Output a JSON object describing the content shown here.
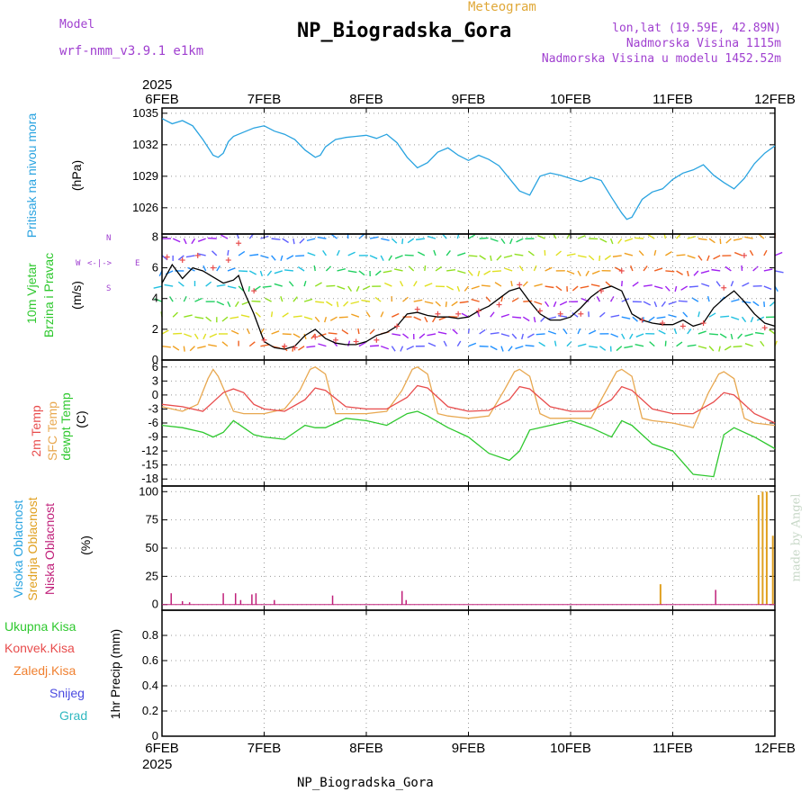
{
  "header": {
    "model_label": "Model",
    "model_name": "wrf-nmm_v3.9.1  e1km",
    "title": "NP_Biogradska_Gora",
    "subtitle": "Meteogram",
    "coords": "lon,lat (19.59E, 42.89N)",
    "altitude": "Nadmorska Visina 1115m",
    "model_altitude": "Nadmorska Visina u modelu 1452.52m"
  },
  "footer": {
    "station": "NP_Biogradska_Gora"
  },
  "watermark": "made by Angel",
  "compass": {
    "n": "N",
    "s": "S",
    "e": "E",
    "w": "W"
  },
  "labels": {
    "pressure": {
      "title": "Pritisak na nivou mora",
      "unit": "(hPa)"
    },
    "wind": {
      "title1": "10m Vjetar",
      "title2": "Brzina i Pravac",
      "unit": "(m/s)"
    },
    "temp": {
      "t2m": "2m Temp",
      "sfc": "SFC Temp",
      "dew": "dewpt Temp",
      "unit": "(C)"
    },
    "cloud": {
      "high": "Visoka Oblacnost",
      "mid": "Srednja Oblacnost",
      "low": "Niska Oblacnost",
      "unit": "(%)"
    },
    "precip": {
      "total": "Ukupna Kisa",
      "conv": "Konvek.Kisa",
      "frz": "Zaledj.Kisa",
      "snow": "Snijeg",
      "grad": "Grad",
      "unit": "1hr Precip (mm)"
    }
  },
  "colors": {
    "pressure": "#29a3e0",
    "t2m": "#e84c4c",
    "sfc": "#e8a850",
    "dew": "#2ec82e",
    "high": "#29a3e0",
    "mid": "#e0a020",
    "low": "#c0207a",
    "wind_speed": "#000000",
    "gust": "#e84c4c"
  },
  "chart_data": {
    "type": "line",
    "year": "2025",
    "x_ticks": [
      "6FEB",
      "7FEB",
      "8FEB",
      "9FEB",
      "10FEB",
      "11FEB",
      "12FEB"
    ],
    "x_range_days": [
      0,
      6
    ],
    "panels": [
      {
        "name": "pressure",
        "ylabel": "(hPa)",
        "ylim": [
          1023.5,
          1035.5
        ],
        "yticks": [
          1026,
          1029,
          1032,
          1035
        ],
        "series": [
          {
            "name": "Pritisak na nivou mora",
            "x": [
              0,
              0.1,
              0.2,
              0.3,
              0.4,
              0.5,
              0.55,
              0.6,
              0.65,
              0.7,
              0.8,
              0.9,
              1.0,
              1.1,
              1.2,
              1.3,
              1.4,
              1.5,
              1.55,
              1.6,
              1.7,
              1.8,
              1.9,
              2.0,
              2.1,
              2.2,
              2.3,
              2.4,
              2.5,
              2.6,
              2.7,
              2.8,
              2.9,
              3.0,
              3.1,
              3.2,
              3.3,
              3.4,
              3.5,
              3.6,
              3.7,
              3.8,
              3.9,
              4.0,
              4.1,
              4.2,
              4.3,
              4.4,
              4.5,
              4.55,
              4.6,
              4.7,
              4.8,
              4.9,
              5.0,
              5.1,
              5.2,
              5.3,
              5.4,
              5.5,
              5.6,
              5.7,
              5.8,
              5.9,
              6.0
            ],
            "values": [
              1034.5,
              1034.0,
              1034.3,
              1033.8,
              1032.5,
              1031.0,
              1030.8,
              1031.2,
              1032.3,
              1032.8,
              1033.2,
              1033.6,
              1033.8,
              1033.3,
              1033.0,
              1032.5,
              1031.5,
              1030.8,
              1031.0,
              1031.8,
              1032.5,
              1032.7,
              1032.8,
              1032.9,
              1032.6,
              1033.0,
              1032.2,
              1030.8,
              1029.8,
              1030.3,
              1031.3,
              1031.7,
              1031.0,
              1030.5,
              1031.0,
              1030.6,
              1030.0,
              1028.8,
              1027.6,
              1027.2,
              1029.0,
              1029.3,
              1029.1,
              1028.8,
              1028.5,
              1028.9,
              1028.6,
              1027.0,
              1025.5,
              1024.9,
              1025.1,
              1026.8,
              1027.5,
              1027.8,
              1028.7,
              1029.3,
              1029.6,
              1030.1,
              1029.1,
              1028.4,
              1027.8,
              1028.8,
              1030.2,
              1031.2,
              1031.9
            ]
          }
        ]
      },
      {
        "name": "wind",
        "ylabel": "(m/s)",
        "ylim": [
          0,
          8.2
        ],
        "yticks": [
          0,
          2,
          4,
          6,
          8
        ],
        "series": [
          {
            "name": "wind speed",
            "x": [
              0,
              0.1,
              0.2,
              0.3,
              0.4,
              0.5,
              0.6,
              0.7,
              0.75,
              0.8,
              0.9,
              1.0,
              1.1,
              1.2,
              1.3,
              1.4,
              1.5,
              1.6,
              1.7,
              1.8,
              1.9,
              2.0,
              2.1,
              2.2,
              2.3,
              2.4,
              2.5,
              2.6,
              2.7,
              2.8,
              2.9,
              3.0,
              3.1,
              3.2,
              3.3,
              3.4,
              3.5,
              3.6,
              3.7,
              3.8,
              3.9,
              4.0,
              4.1,
              4.2,
              4.3,
              4.4,
              4.5,
              4.6,
              4.7,
              4.8,
              4.9,
              5.0,
              5.1,
              5.2,
              5.3,
              5.4,
              5.5,
              5.6,
              5.7,
              5.8,
              5.9,
              6.0
            ],
            "values": [
              5.0,
              6.2,
              5.3,
              6.0,
              5.8,
              5.4,
              5.0,
              5.2,
              5.5,
              4.5,
              3.0,
              1.2,
              0.8,
              0.7,
              0.9,
              1.6,
              2.0,
              1.4,
              1.1,
              1.0,
              1.0,
              1.2,
              1.6,
              1.8,
              2.2,
              3.0,
              3.1,
              2.9,
              2.8,
              2.8,
              2.7,
              2.8,
              3.2,
              3.5,
              4.0,
              4.5,
              4.7,
              3.8,
              3.0,
              2.6,
              2.6,
              2.8,
              3.4,
              4.1,
              4.6,
              4.8,
              4.5,
              3.0,
              2.6,
              2.4,
              2.3,
              2.3,
              2.6,
              2.2,
              2.4,
              3.4,
              4.0,
              4.5,
              3.8,
              3.0,
              2.4,
              2.2
            ]
          },
          {
            "name": "gust",
            "x": [
              0.05,
              0.2,
              0.35,
              0.5,
              0.65,
              0.75,
              0.9,
              1.0,
              1.2,
              1.3,
              1.5,
              1.7,
              1.9,
              2.1,
              2.3,
              2.5,
              2.7,
              2.9,
              3.1,
              3.3,
              3.5,
              3.7,
              3.9,
              4.1,
              4.3,
              4.5,
              4.7,
              4.9,
              5.1,
              5.3,
              5.5,
              5.7,
              5.9
            ],
            "values": [
              6.7,
              6.5,
              6.8,
              6.0,
              6.5,
              7.6,
              4.5,
              1.3,
              0.9,
              0.8,
              1.5,
              1.3,
              1.2,
              1.3,
              2.2,
              3.3,
              3.0,
              3.0,
              3.2,
              3.6,
              4.9,
              3.2,
              3.0,
              3.0,
              4.5,
              5.8,
              2.6,
              2.4,
              2.2,
              2.4,
              4.7,
              6.8,
              2.1
            ]
          }
        ]
      },
      {
        "name": "temperature",
        "ylabel": "(C)",
        "ylim": [
          -19.5,
          7.5
        ],
        "yticks": [
          -18,
          -15,
          -12,
          -9,
          -6,
          -3,
          0,
          3,
          6
        ],
        "series": [
          {
            "name": "2m Temp",
            "x": [
              0,
              0.2,
              0.4,
              0.5,
              0.6,
              0.7,
              0.8,
              0.9,
              1.0,
              1.2,
              1.4,
              1.5,
              1.6,
              1.8,
              2.0,
              2.2,
              2.4,
              2.5,
              2.6,
              2.8,
              3.0,
              3.2,
              3.4,
              3.5,
              3.6,
              3.8,
              4.0,
              4.2,
              4.4,
              4.5,
              4.6,
              4.8,
              5.0,
              5.2,
              5.4,
              5.5,
              5.6,
              5.8,
              6.0
            ],
            "values": [
              -2.0,
              -2.5,
              -3.5,
              -1.5,
              0.5,
              1.3,
              0.5,
              -2.0,
              -3.0,
              -3.5,
              -1.0,
              1.5,
              1.0,
              -2.5,
              -3.0,
              -3.0,
              -0.5,
              2.0,
              1.5,
              -2.5,
              -3.5,
              -3.3,
              -1.0,
              1.8,
              1.3,
              -2.5,
              -3.5,
              -3.5,
              -1.0,
              1.8,
              1.0,
              -3.0,
              -4.0,
              -4.0,
              -1.5,
              0.5,
              0.0,
              -4.0,
              -6.0
            ]
          },
          {
            "name": "SFC Temp",
            "x": [
              0,
              0.2,
              0.35,
              0.45,
              0.5,
              0.55,
              0.6,
              0.7,
              0.8,
              0.9,
              1.0,
              1.2,
              1.35,
              1.45,
              1.5,
              1.6,
              1.7,
              1.8,
              2.0,
              2.2,
              2.35,
              2.45,
              2.5,
              2.6,
              2.7,
              2.8,
              3.0,
              3.2,
              3.35,
              3.45,
              3.5,
              3.6,
              3.7,
              3.8,
              4.0,
              4.2,
              4.35,
              4.45,
              4.5,
              4.6,
              4.7,
              4.8,
              5.0,
              5.2,
              5.35,
              5.45,
              5.5,
              5.6,
              5.7,
              5.8,
              6.0
            ],
            "values": [
              -2.5,
              -3.5,
              -2.0,
              3.5,
              5.5,
              4.0,
              1.5,
              -3.5,
              -4.0,
              -4.0,
              -4.0,
              -3.0,
              1.0,
              5.5,
              6.0,
              4.5,
              -4.0,
              -4.0,
              -4.0,
              -3.5,
              1.0,
              5.5,
              6.0,
              4.5,
              -4.0,
              -4.5,
              -5.0,
              -4.5,
              1.0,
              5.0,
              5.5,
              4.0,
              -4.0,
              -5.0,
              -5.0,
              -5.0,
              1.0,
              5.0,
              5.5,
              4.0,
              -5.0,
              -5.5,
              -6.0,
              -7.0,
              0.5,
              4.5,
              5.0,
              3.5,
              -5.0,
              -6.0,
              -6.5
            ]
          },
          {
            "name": "dewpt Temp",
            "x": [
              0,
              0.2,
              0.4,
              0.5,
              0.6,
              0.7,
              0.8,
              0.9,
              1.0,
              1.2,
              1.4,
              1.5,
              1.6,
              1.8,
              2.0,
              2.2,
              2.4,
              2.5,
              2.6,
              2.8,
              3.0,
              3.2,
              3.4,
              3.5,
              3.6,
              3.8,
              4.0,
              4.2,
              4.4,
              4.5,
              4.6,
              4.8,
              5.0,
              5.2,
              5.4,
              5.5,
              5.6,
              5.8,
              6.0
            ],
            "values": [
              -6.5,
              -7.0,
              -8.0,
              -9.0,
              -8.0,
              -5.5,
              -7.0,
              -8.5,
              -9.0,
              -9.5,
              -6.5,
              -7.0,
              -7.0,
              -5.0,
              -5.5,
              -6.5,
              -4.0,
              -3.5,
              -4.5,
              -7.0,
              -9.0,
              -12.5,
              -14.0,
              -12.0,
              -7.5,
              -6.5,
              -5.5,
              -7.0,
              -9.0,
              -5.5,
              -6.5,
              -10.5,
              -12.0,
              -17.0,
              -17.5,
              -8.5,
              -7.0,
              -9.0,
              -11.5
            ]
          }
        ]
      },
      {
        "name": "cloud",
        "ylabel": "(%)",
        "ylim": [
          -5,
          105
        ],
        "yticks": [
          0,
          25,
          50,
          75,
          100
        ],
        "series": [
          {
            "name": "Niska Oblacnost",
            "x": [
              0.09,
              0.2,
              0.27,
              0.6,
              0.72,
              0.77,
              0.88,
              0.92,
              1.1,
              1.67,
              2.35,
              2.39,
              5.42
            ],
            "values": [
              10,
              3,
              2,
              10,
              10,
              4,
              9,
              10,
              4,
              8,
              12,
              4,
              13
            ]
          },
          {
            "name": "Srednja Oblacnost",
            "x": [
              4.88,
              5.84,
              5.88,
              5.92,
              5.98
            ],
            "values": [
              18,
              97,
              100,
              100,
              61
            ]
          }
        ]
      },
      {
        "name": "precip",
        "ylabel": "1hr Precip (mm)",
        "ylim": [
          0,
          1
        ],
        "yticks": [
          0,
          0.2,
          0.4,
          0.6,
          0.8
        ],
        "series": []
      }
    ]
  }
}
